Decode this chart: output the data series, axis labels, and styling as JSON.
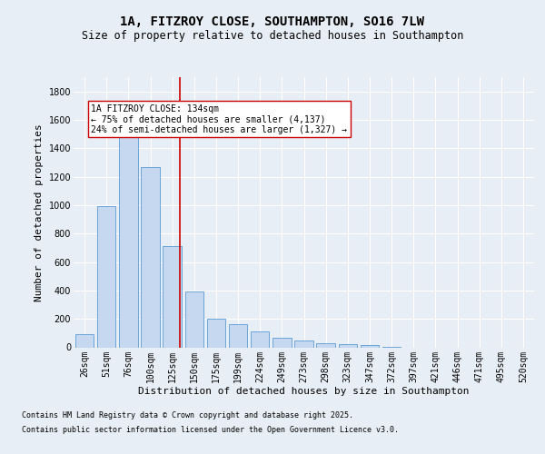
{
  "title_line1": "1A, FITZROY CLOSE, SOUTHAMPTON, SO16 7LW",
  "title_line2": "Size of property relative to detached houses in Southampton",
  "xlabel": "Distribution of detached houses by size in Southampton",
  "ylabel": "Number of detached properties",
  "categories": [
    "26sqm",
    "51sqm",
    "76sqm",
    "100sqm",
    "125sqm",
    "150sqm",
    "175sqm",
    "199sqm",
    "224sqm",
    "249sqm",
    "273sqm",
    "298sqm",
    "323sqm",
    "347sqm",
    "372sqm",
    "397sqm",
    "421sqm",
    "446sqm",
    "471sqm",
    "495sqm",
    "520sqm"
  ],
  "values": [
    90,
    990,
    1620,
    1270,
    710,
    390,
    200,
    160,
    110,
    70,
    50,
    30,
    20,
    18,
    5,
    0,
    0,
    0,
    0,
    0,
    0
  ],
  "bar_color": "#c5d8ef",
  "bar_edge_color": "#5b9bd5",
  "vline_color": "#cc0000",
  "vline_pos": 4.36,
  "annotation_text": "1A FITZROY CLOSE: 134sqm\n← 75% of detached houses are smaller (4,137)\n24% of semi-detached houses are larger (1,327) →",
  "annotation_box_color": "#ffffff",
  "annotation_box_edge": "#cc0000",
  "ylim": [
    0,
    1900
  ],
  "yticks": [
    0,
    200,
    400,
    600,
    800,
    1000,
    1200,
    1400,
    1600,
    1800
  ],
  "bg_color": "#e8eef5",
  "grid_color": "#ffffff",
  "footer_line1": "Contains HM Land Registry data © Crown copyright and database right 2025.",
  "footer_line2": "Contains public sector information licensed under the Open Government Licence v3.0.",
  "title_fontsize": 10,
  "subtitle_fontsize": 8.5,
  "tick_fontsize": 7,
  "label_fontsize": 8,
  "ann_fontsize": 7,
  "footer_fontsize": 6
}
